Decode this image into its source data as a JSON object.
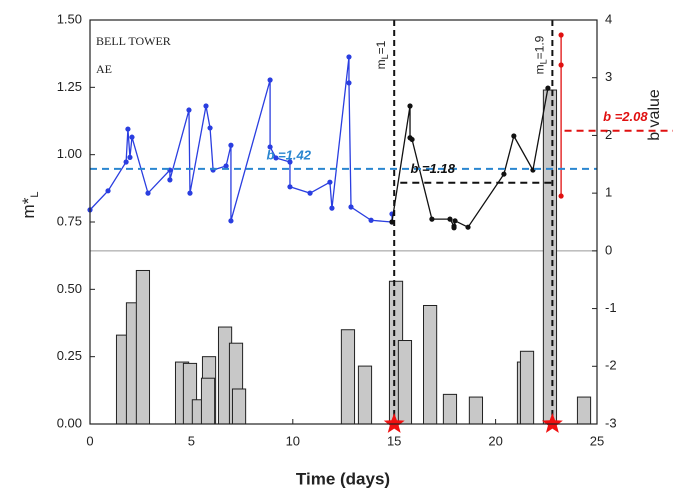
{
  "chart_data": {
    "type": "combo",
    "annotations": [
      "BELL TOWER",
      "AE"
    ],
    "xlabel": "Time (days)",
    "ylabel": [
      "m*",
      "L"
    ],
    "y2label": "b value",
    "xlim": [
      0,
      25
    ],
    "xticks": [
      0,
      5,
      10,
      15,
      20,
      25
    ],
    "ylim": [
      0,
      1.5
    ],
    "yticks": [
      {
        "value": 0,
        "label": "0.00"
      },
      {
        "value": 0.25,
        "label": "0.25"
      },
      {
        "value": 0.5,
        "label": "0.50"
      },
      {
        "value": 0.75,
        "label": "0.75"
      },
      {
        "value": 1,
        "label": "1.00"
      },
      {
        "value": 1.25,
        "label": "1.25"
      },
      {
        "value": 1.5,
        "label": "1.50"
      }
    ],
    "y2lim": [
      -3,
      4
    ],
    "y2ticks": [
      -3,
      -2,
      -1,
      0,
      1,
      2,
      3,
      4
    ],
    "bar_width": 0.65,
    "series": [
      {
        "type": "bar",
        "axis": "y",
        "color": "#c8c8c8",
        "x": [
          1.63,
          2.12,
          2.61,
          4.54,
          4.93,
          5.37,
          5.87,
          5.82,
          6.66,
          7.2,
          7.35,
          12.72,
          13.56,
          15.09,
          15.53,
          16.77,
          17.75,
          19.03,
          21.4,
          21.55,
          22.68,
          24.36
        ],
        "values": [
          0.33,
          0.45,
          0.57,
          0.23,
          0.225,
          0.09,
          0.25,
          0.17,
          0.36,
          0.3,
          0.13,
          0.35,
          0.215,
          0.53,
          0.31,
          0.44,
          0.11,
          0.1,
          0.23,
          0.27,
          1.24,
          0.1
        ]
      },
      {
        "type": "line",
        "axis": "y2",
        "color": "#2a3ee0",
        "x": [
          0,
          0.89,
          1.78,
          1.87,
          1.97,
          2.07,
          2.86,
          3.94,
          3.94,
          4.88,
          4.93,
          5.72,
          5.92,
          6.07,
          6.71,
          6.95,
          6.95,
          8.88,
          8.88,
          9.17,
          9.86,
          9.86,
          10.85,
          11.83,
          11.93,
          12.77,
          12.77,
          12.87,
          13.86,
          14.89,
          14.89
        ],
        "values": [
          0.71,
          1.04,
          1.54,
          2.11,
          1.62,
          1.97,
          1.0,
          1.4,
          1.23,
          2.44,
          1.0,
          2.51,
          2.13,
          1.4,
          1.47,
          1.83,
          0.52,
          2.96,
          1.8,
          1.61,
          1.54,
          1.11,
          1.0,
          1.19,
          0.74,
          3.36,
          2.91,
          0.76,
          0.53,
          0.5,
          0.64
        ]
      },
      {
        "type": "line",
        "axis": "y2",
        "color": "#111111",
        "x": [
          14.89,
          15.78,
          15.78,
          15.88,
          16.86,
          17.75,
          17.95,
          17.95,
          18.0,
          18.64,
          20.41,
          20.9,
          21.84,
          22.58
        ],
        "values": [
          0.5,
          2.51,
          1.96,
          1.93,
          0.55,
          0.55,
          0.43,
          0.4,
          0.52,
          0.41,
          1.33,
          1.99,
          1.4,
          2.82
        ]
      },
      {
        "type": "line",
        "axis": "y2",
        "color": "#e01010",
        "x": [
          23.23,
          23.23,
          23.23
        ],
        "values": [
          3.74,
          3.22,
          0.95
        ]
      }
    ],
    "hlines": [
      {
        "value": 1.42,
        "label": "b =1.42",
        "color": "#2a86d0",
        "x_range": [
          0,
          25
        ],
        "label_x": 9.8
      },
      {
        "value": 1.18,
        "label": "b =1.18",
        "color": "#111111",
        "x_range": [
          15.3,
          22.9
        ],
        "label_x": 16.9
      },
      {
        "value": 2.08,
        "label": "b =2.08",
        "color": "#e01010",
        "x_range": [
          23.4,
          29
        ],
        "label_x": 26.4
      }
    ],
    "vlines": [
      {
        "x": 15,
        "label": [
          "m",
          "L",
          "=1"
        ]
      },
      {
        "x": 22.8,
        "label": [
          "m",
          "L",
          "=1.9"
        ]
      }
    ]
  }
}
